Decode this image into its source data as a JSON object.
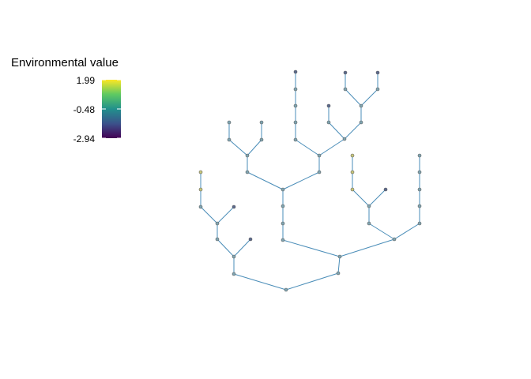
{
  "legend": {
    "title": "Environmental value",
    "ticks": [
      "1.99",
      "-0.48",
      "-2.94"
    ],
    "colors": [
      "#fde725",
      "#21908c",
      "#440154"
    ]
  },
  "tree": {
    "edge_color": "#4a8db8",
    "node_stroke": "#5a5a5a"
  }
}
